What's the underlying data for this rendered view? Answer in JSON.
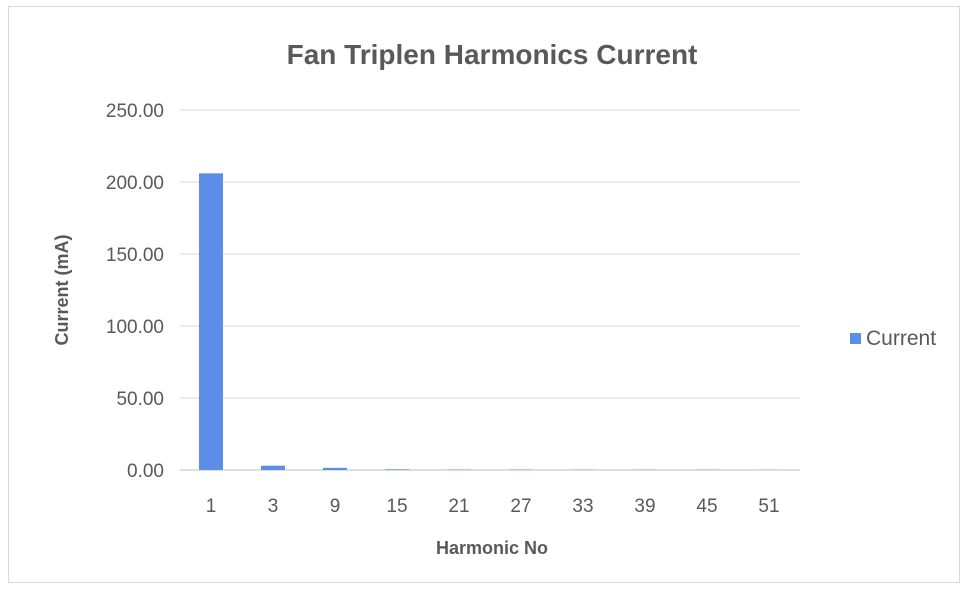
{
  "chart_data": {
    "type": "bar",
    "title": "Fan Triplen Harmonics Current",
    "xlabel": "Harmonic No",
    "ylabel": "Current (mA)",
    "categories": [
      "1",
      "3",
      "9",
      "15",
      "21",
      "27",
      "33",
      "39",
      "45",
      "51"
    ],
    "series": [
      {
        "name": "Current",
        "values": [
          206.0,
          3.0,
          1.5,
          0.5,
          0.3,
          0.3,
          0.2,
          0.2,
          0.2,
          0.1
        ],
        "color": "#5b8ee6"
      }
    ],
    "ylim": [
      0,
      250
    ],
    "yticks": [
      "0.00",
      "50.00",
      "100.00",
      "150.00",
      "200.00",
      "250.00"
    ],
    "grid": true,
    "legend": "right",
    "colors": {
      "gridline": "#d9d9d9",
      "text": "#595959",
      "axis": "#bfbfbf"
    }
  }
}
